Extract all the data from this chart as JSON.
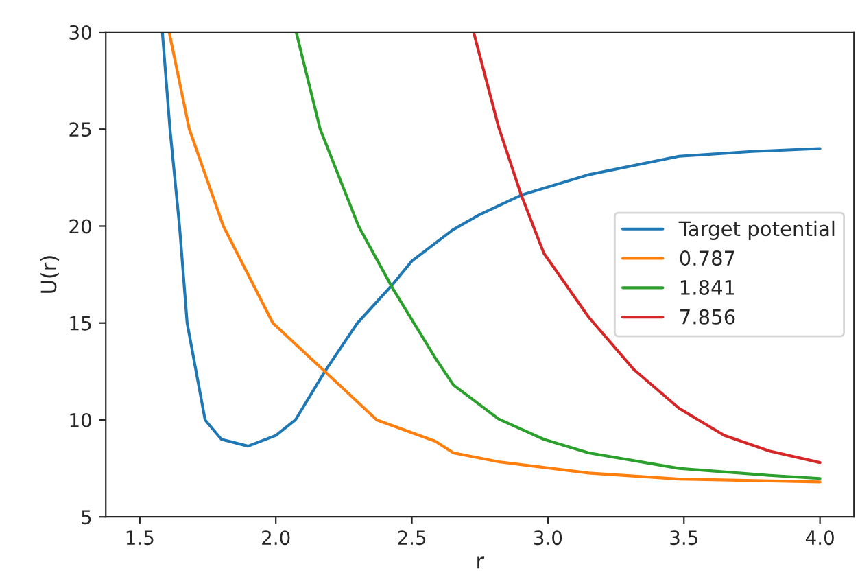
{
  "chart_data": {
    "type": "line",
    "xlabel": "r",
    "ylabel": "U(r)",
    "xlim": [
      1.375,
      4.125
    ],
    "ylim": [
      5,
      30
    ],
    "xticks": [
      {
        "value": 1.5,
        "label": "1.5"
      },
      {
        "value": 2.0,
        "label": "2.0"
      },
      {
        "value": 2.5,
        "label": "2.5"
      },
      {
        "value": 3.0,
        "label": "3.0"
      },
      {
        "value": 3.5,
        "label": "3.5"
      },
      {
        "value": 4.0,
        "label": "4.0"
      }
    ],
    "yticks": [
      5,
      10,
      15,
      20,
      25,
      30
    ],
    "grid": false,
    "legend": "right",
    "marker": "none",
    "line_style": "solid",
    "series": [
      {
        "name": "Target potential",
        "color": "#1f77b4",
        "x": [
          1.583,
          1.611,
          1.646,
          1.674,
          1.74,
          1.8,
          1.898,
          2.0,
          2.072,
          2.18,
          2.3,
          2.43,
          2.5,
          2.65,
          2.75,
          2.902,
          3.15,
          3.482,
          3.75,
          4.0
        ],
        "values": [
          30,
          25,
          20,
          15,
          10,
          9.0,
          8.65,
          9.2,
          10,
          12.5,
          15,
          17,
          18.2,
          19.8,
          20.6,
          21.6,
          22.65,
          23.6,
          23.85,
          24.0
        ]
      },
      {
        "name": "0.787",
        "color": "#ff7f0e",
        "x": [
          1.608,
          1.682,
          1.807,
          1.989,
          2.18,
          2.371,
          2.586,
          2.653,
          2.819,
          3.15,
          3.482,
          4.0
        ],
        "values": [
          30,
          25,
          20,
          15,
          12.5,
          10,
          8.9,
          8.3,
          7.84,
          7.26,
          6.95,
          6.8
        ]
      },
      {
        "name": "1.841",
        "color": "#2ca02c",
        "x": [
          2.075,
          2.163,
          2.304,
          2.429,
          2.586,
          2.653,
          2.819,
          2.985,
          3.15,
          3.482,
          3.814,
          4.0
        ],
        "values": [
          30,
          25,
          20,
          16.8,
          13.2,
          11.8,
          10.05,
          9.0,
          8.3,
          7.5,
          7.14,
          6.98
        ]
      },
      {
        "name": "7.856",
        "color": "#d62728",
        "x": [
          2.727,
          2.819,
          2.902,
          2.985,
          3.15,
          3.316,
          3.482,
          3.648,
          3.814,
          4.0
        ],
        "values": [
          30,
          25.1,
          21.6,
          18.6,
          15.3,
          12.6,
          10.6,
          9.2,
          8.4,
          7.8
        ]
      }
    ]
  }
}
